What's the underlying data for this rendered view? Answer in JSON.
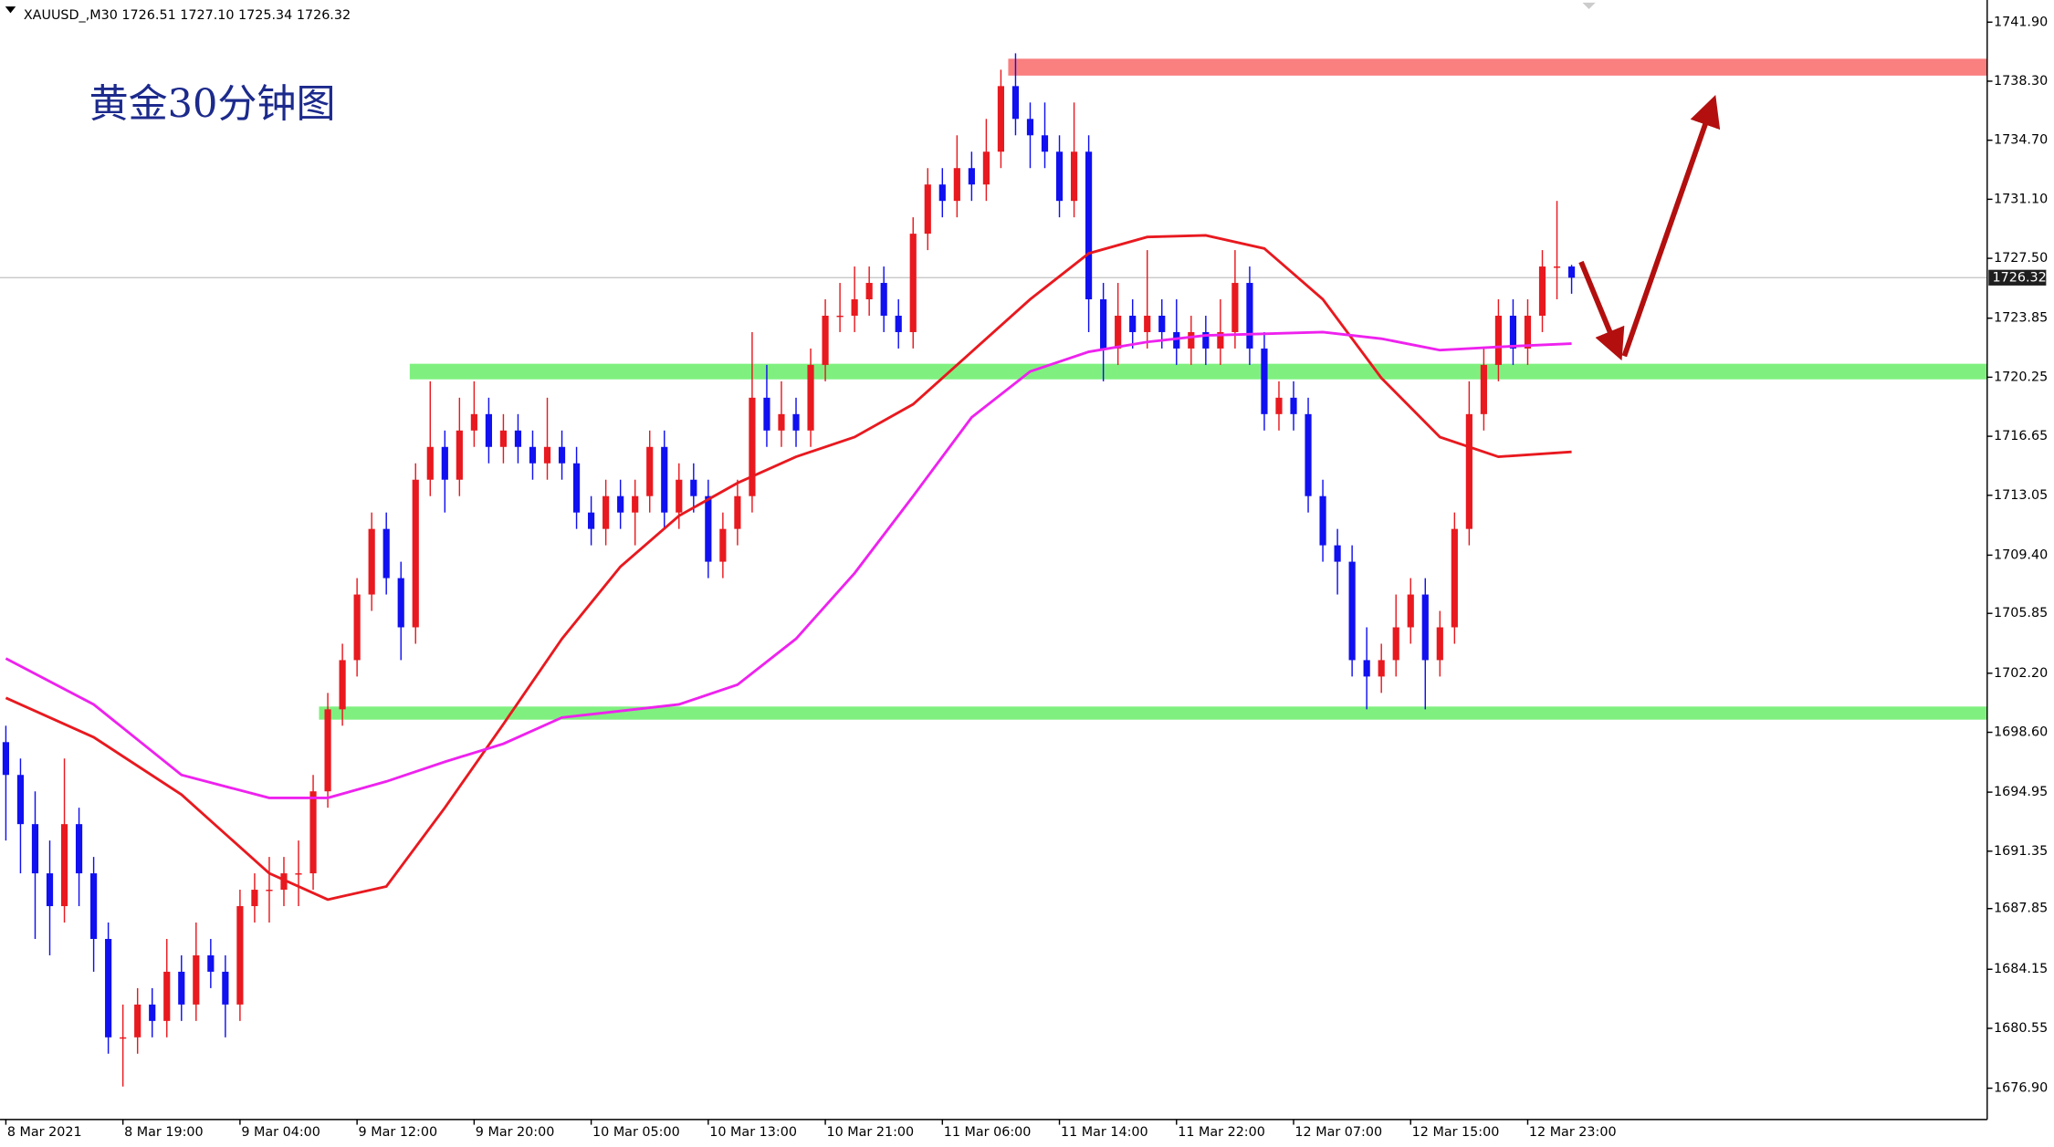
{
  "chart_data": {
    "type": "candlestick",
    "header": "XAUUSD_,M30  1726.51 1727.10 1725.34 1726.32",
    "title": "黄金30分钟图",
    "up_color": "#e8191f",
    "down_color": "#1010f0",
    "last_price": 1726.32,
    "xlim": [
      -0.4,
      135.4
    ],
    "ylim": [
      1674.99,
      1743.25
    ],
    "xticks": [
      {
        "value": 0,
        "label": "8 Mar 2021"
      },
      {
        "value": 8,
        "label": "8 Mar 19:00"
      },
      {
        "value": 16,
        "label": "9 Mar 04:00"
      },
      {
        "value": 24,
        "label": "9 Mar 12:00"
      },
      {
        "value": 32,
        "label": "9 Mar 20:00"
      },
      {
        "value": 40,
        "label": "10 Mar 05:00"
      },
      {
        "value": 48,
        "label": "10 Mar 13:00"
      },
      {
        "value": 56,
        "label": "10 Mar 21:00"
      },
      {
        "value": 64,
        "label": "11 Mar 06:00"
      },
      {
        "value": 72,
        "label": "11 Mar 14:00"
      },
      {
        "value": 80,
        "label": "11 Mar 22:00"
      },
      {
        "value": 88,
        "label": "12 Mar 07:00"
      },
      {
        "value": 96,
        "label": "12 Mar 15:00"
      },
      {
        "value": 104,
        "label": "12 Mar 23:00"
      }
    ],
    "yticks": [
      {
        "value": 1741.9,
        "label": "1741.90"
      },
      {
        "value": 1738.3,
        "label": "1738.30"
      },
      {
        "value": 1734.7,
        "label": "1734.70"
      },
      {
        "value": 1731.1,
        "label": "1731.10"
      },
      {
        "value": 1727.5,
        "label": "1727.50"
      },
      1723.85,
      1720.25,
      1716.65,
      1713.05,
      {
        "value": 1709.4,
        "label": "1709.40"
      },
      1705.85,
      {
        "value": 1702.2,
        "label": "1702.20"
      },
      {
        "value": 1698.6,
        "label": "1698.60"
      },
      1694.95,
      1691.35,
      1687.85,
      1684.15,
      1680.55,
      {
        "value": 1676.9,
        "label": "1676.90"
      }
    ],
    "candles": [
      [
        1698,
        1699,
        1692,
        1696
      ],
      [
        1696,
        1697,
        1690,
        1693
      ],
      [
        1693,
        1695,
        1686,
        1690
      ],
      [
        1690,
        1692,
        1685,
        1688
      ],
      [
        1688,
        1697,
        1687,
        1693
      ],
      [
        1693,
        1694,
        1688,
        1690
      ],
      [
        1690,
        1691,
        1684,
        1686
      ],
      [
        1686,
        1687,
        1679,
        1680
      ],
      [
        1680,
        1682,
        1677,
        1680
      ],
      [
        1680,
        1683,
        1679,
        1682
      ],
      [
        1682,
        1683,
        1680,
        1681
      ],
      [
        1681,
        1686,
        1680,
        1684
      ],
      [
        1684,
        1685,
        1681,
        1682
      ],
      [
        1682,
        1687,
        1681,
        1685
      ],
      [
        1685,
        1686,
        1683,
        1684
      ],
      [
        1684,
        1685,
        1680,
        1682
      ],
      [
        1682,
        1689,
        1681,
        1688
      ],
      [
        1688,
        1690,
        1687,
        1689
      ],
      [
        1689,
        1691,
        1687,
        1689
      ],
      [
        1689,
        1691,
        1688,
        1690
      ],
      [
        1690,
        1692,
        1688,
        1690
      ],
      [
        1690,
        1696,
        1689,
        1695
      ],
      [
        1695,
        1701,
        1694,
        1700
      ],
      [
        1700,
        1704,
        1699,
        1703
      ],
      [
        1703,
        1708,
        1702,
        1707
      ],
      [
        1707,
        1712,
        1706,
        1711
      ],
      [
        1711,
        1712,
        1707,
        1708
      ],
      [
        1708,
        1709,
        1703,
        1705
      ],
      [
        1705,
        1715,
        1704,
        1714
      ],
      [
        1714,
        1720,
        1713,
        1716
      ],
      [
        1716,
        1717,
        1712,
        1714
      ],
      [
        1714,
        1719,
        1713,
        1717
      ],
      [
        1717,
        1720,
        1716,
        1718
      ],
      [
        1718,
        1719,
        1715,
        1716
      ],
      [
        1716,
        1718,
        1715,
        1717
      ],
      [
        1717,
        1718,
        1715,
        1716
      ],
      [
        1716,
        1717,
        1714,
        1715
      ],
      [
        1715,
        1719,
        1714,
        1716
      ],
      [
        1716,
        1717,
        1714,
        1715
      ],
      [
        1715,
        1716,
        1711,
        1712
      ],
      [
        1712,
        1713,
        1710,
        1711
      ],
      [
        1711,
        1714,
        1710,
        1713
      ],
      [
        1713,
        1714,
        1711,
        1712
      ],
      [
        1712,
        1714,
        1710,
        1713
      ],
      [
        1713,
        1717,
        1712,
        1716
      ],
      [
        1716,
        1717,
        1711,
        1712
      ],
      [
        1712,
        1715,
        1711,
        1714
      ],
      [
        1714,
        1715,
        1712,
        1713
      ],
      [
        1713,
        1714,
        1708,
        1709
      ],
      [
        1709,
        1712,
        1708,
        1711
      ],
      [
        1711,
        1714,
        1710,
        1713
      ],
      [
        1713,
        1723,
        1712,
        1719
      ],
      [
        1719,
        1721,
        1716,
        1717
      ],
      [
        1717,
        1720,
        1716,
        1718
      ],
      [
        1718,
        1719,
        1716,
        1717
      ],
      [
        1717,
        1722,
        1716,
        1721
      ],
      [
        1721,
        1725,
        1720,
        1724
      ],
      [
        1724,
        1726,
        1723,
        1724
      ],
      [
        1724,
        1727,
        1723,
        1725
      ],
      [
        1725,
        1727,
        1724,
        1726
      ],
      [
        1726,
        1727,
        1723,
        1724
      ],
      [
        1724,
        1725,
        1722,
        1723
      ],
      [
        1723,
        1730,
        1722,
        1729
      ],
      [
        1729,
        1733,
        1728,
        1732
      ],
      [
        1732,
        1733,
        1730,
        1731
      ],
      [
        1731,
        1735,
        1730,
        1733
      ],
      [
        1733,
        1734,
        1731,
        1732
      ],
      [
        1732,
        1736,
        1731,
        1734
      ],
      [
        1734,
        1739,
        1733,
        1738
      ],
      [
        1738,
        1740,
        1735,
        1736
      ],
      [
        1736,
        1737,
        1733,
        1735
      ],
      [
        1735,
        1737,
        1733,
        1734
      ],
      [
        1734,
        1735,
        1730,
        1731
      ],
      [
        1731,
        1737,
        1730,
        1734
      ],
      [
        1734,
        1735,
        1723,
        1725
      ],
      [
        1725,
        1726,
        1720,
        1722
      ],
      [
        1722,
        1726,
        1721,
        1724
      ],
      [
        1724,
        1725,
        1722,
        1723
      ],
      [
        1723,
        1728,
        1722,
        1724
      ],
      [
        1724,
        1725,
        1722,
        1723
      ],
      [
        1723,
        1725,
        1721,
        1722
      ],
      [
        1722,
        1724,
        1721,
        1723
      ],
      [
        1723,
        1724,
        1721,
        1722
      ],
      [
        1722,
        1725,
        1721,
        1723
      ],
      [
        1723,
        1728,
        1722,
        1726
      ],
      [
        1726,
        1727,
        1721,
        1722
      ],
      [
        1722,
        1723,
        1717,
        1718
      ],
      [
        1718,
        1720,
        1717,
        1719
      ],
      [
        1719,
        1720,
        1717,
        1718
      ],
      [
        1718,
        1719,
        1712,
        1713
      ],
      [
        1713,
        1714,
        1709,
        1710
      ],
      [
        1710,
        1711,
        1707,
        1709
      ],
      [
        1709,
        1710,
        1702,
        1703
      ],
      [
        1703,
        1705,
        1700,
        1702
      ],
      [
        1702,
        1704,
        1701,
        1703
      ],
      [
        1703,
        1707,
        1702,
        1705
      ],
      [
        1705,
        1708,
        1704,
        1707
      ],
      [
        1707,
        1708,
        1700,
        1703
      ],
      [
        1703,
        1706,
        1702,
        1705
      ],
      [
        1705,
        1712,
        1704,
        1711
      ],
      [
        1711,
        1720,
        1710,
        1718
      ],
      [
        1718,
        1722,
        1717,
        1721
      ],
      [
        1721,
        1725,
        1720,
        1724
      ],
      [
        1724,
        1725,
        1721,
        1722
      ],
      [
        1722,
        1725,
        1721,
        1724
      ],
      [
        1724,
        1728,
        1723,
        1727
      ],
      [
        1727,
        1731,
        1725,
        1727
      ],
      [
        1727,
        1727.1,
        1725.34,
        1726.32
      ]
    ],
    "series": [
      {
        "color": "#e8191f",
        "x": [
          0,
          6,
          12,
          18,
          22,
          26,
          30,
          34,
          38,
          42,
          46,
          50,
          54,
          58,
          62,
          66,
          70,
          74,
          78,
          82,
          86,
          90,
          94,
          98,
          102,
          107
        ],
        "values": [
          1700.7,
          1698.3,
          1694.8,
          1690.0,
          1688.4,
          1689.2,
          1694.0,
          1699.1,
          1704.3,
          1708.7,
          1711.8,
          1713.8,
          1715.4,
          1716.6,
          1718.6,
          1721.8,
          1725.0,
          1727.8,
          1728.8,
          1728.9,
          1728.1,
          1725.0,
          1720.2,
          1716.6,
          1715.4,
          1715.7
        ]
      },
      {
        "color": "#ee22ee",
        "x": [
          0,
          6,
          12,
          18,
          22,
          26,
          30,
          34,
          38,
          42,
          46,
          50,
          54,
          58,
          62,
          66,
          70,
          74,
          78,
          82,
          86,
          90,
          94,
          98,
          102,
          107
        ],
        "values": [
          1703.1,
          1700.3,
          1696.0,
          1694.6,
          1694.6,
          1695.6,
          1696.8,
          1697.9,
          1699.5,
          1699.9,
          1700.3,
          1701.5,
          1704.3,
          1708.3,
          1713.0,
          1717.8,
          1720.6,
          1721.8,
          1722.4,
          1722.8,
          1722.9,
          1723.0,
          1722.6,
          1721.9,
          1722.1,
          1722.3
        ]
      }
    ],
    "zones": [
      {
        "from": 68.5,
        "bottom": 1738.64,
        "top": 1739.67,
        "color": "#fa7f7f"
      },
      {
        "from": 27.6,
        "bottom": 1720.12,
        "top": 1721.07,
        "color": "#7ff07f"
      },
      {
        "from": 21.4,
        "bottom": 1699.37,
        "top": 1700.17,
        "color": "#7ff07f"
      }
    ]
  }
}
